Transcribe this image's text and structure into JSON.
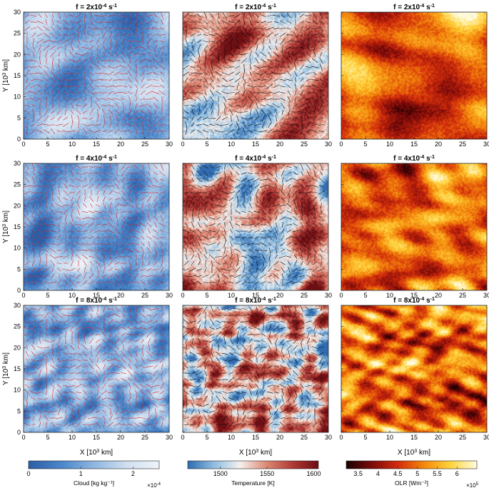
{
  "chart_data": {
    "type": "heatmap",
    "layout": "3x3 panel grid",
    "x_axis": {
      "label_main": "X [10",
      "label_exp": "3",
      "label_tail": " km]",
      "ticks": [
        0,
        5,
        10,
        15,
        20,
        25,
        30
      ],
      "range": [
        0,
        30
      ]
    },
    "y_axis": {
      "label_main": "Y [10",
      "label_exp": "3",
      "label_tail": " km]",
      "ticks": [
        0,
        5,
        10,
        15,
        20,
        25,
        30
      ],
      "range": [
        0,
        30
      ]
    },
    "rows": [
      {
        "f_text": "f = 2x10",
        "f_exp": "-4",
        "f_unit": " s",
        "f_unit_exp": "-1"
      },
      {
        "f_text": "f = 4x10",
        "f_exp": "-4",
        "f_unit": " s",
        "f_unit_exp": "-1"
      },
      {
        "f_text": "f = 8x10",
        "f_exp": "-4",
        "f_unit": " s",
        "f_unit_exp": "-1"
      }
    ],
    "fields": [
      {
        "name": "Cloud",
        "colorbar_label": "Cloud [kg kg⁻¹]",
        "colorbar_multiplier": "×10",
        "colorbar_multiplier_exp": "-4",
        "colorbar_ticks": [
          0,
          1,
          2
        ],
        "colorbar_range": [
          0,
          2.5
        ],
        "colormap": [
          "#2c5ea8",
          "#4a85c9",
          "#8fb6e1",
          "#cfdff0",
          "#eef3f9"
        ],
        "arrow_color": "#d62c2c"
      },
      {
        "name": "Temperature",
        "colorbar_label": "Temperature [K]",
        "colorbar_ticks": [
          1500,
          1550,
          1600
        ],
        "colorbar_range": [
          1465,
          1605
        ],
        "colormap": [
          "#2f6bb0",
          "#8fbde0",
          "#f4f1ef",
          "#dd8a74",
          "#b03a36",
          "#6d0e12"
        ],
        "arrow_color": "#111111"
      },
      {
        "name": "OLR",
        "colorbar_label": "OLR [Wm⁻²]",
        "colorbar_multiplier": "×10",
        "colorbar_multiplier_exp": "5",
        "colorbar_ticks": [
          3.5,
          4,
          4.5,
          5,
          5.5,
          6
        ],
        "colorbar_range": [
          3.2,
          6.5
        ],
        "colormap": [
          "#1a0000",
          "#7d0a0a",
          "#d32d0b",
          "#f58a0c",
          "#ffd43b",
          "#fffbe0"
        ]
      }
    ]
  }
}
